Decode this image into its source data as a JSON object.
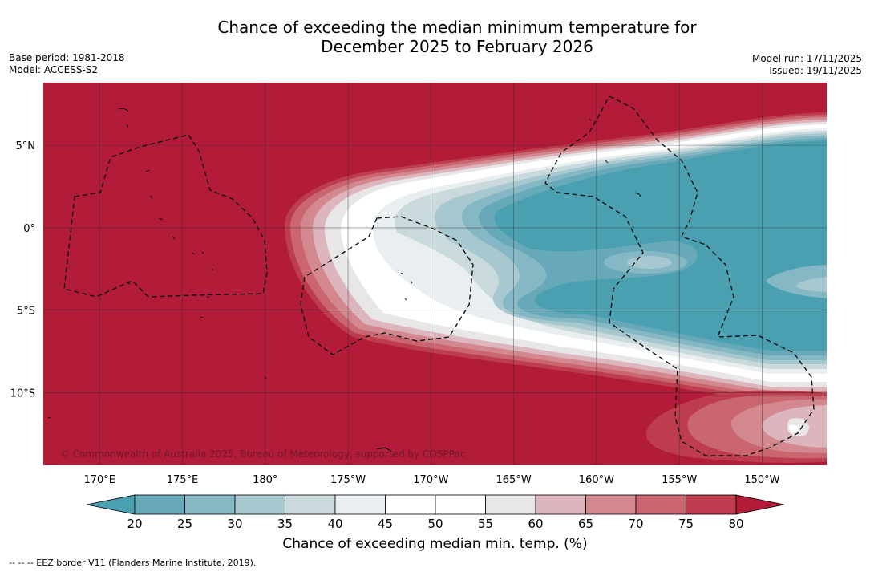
{
  "title_line1": "Chance of exceeding the median minimum temperature for",
  "title_line2": "December 2025 to February 2026",
  "base_period": "Base period: 1981-2018",
  "model": "Model: ACCESS-S2",
  "model_run": "Model run: 17/11/2025",
  "issued": "Issued: 19/11/2025",
  "copyright": "© Commonwealth of Australia 2025, Bureau of Meteorology, supported by COSPPac",
  "map": {
    "lon_ticks": [
      {
        "lon": 170,
        "label": "170°E"
      },
      {
        "lon": 175,
        "label": "175°E"
      },
      {
        "lon": 180,
        "label": "180°"
      },
      {
        "lon": 185,
        "label": "175°W"
      },
      {
        "lon": 190,
        "label": "170°W"
      },
      {
        "lon": 195,
        "label": "165°W"
      },
      {
        "lon": 200,
        "label": "160°W"
      },
      {
        "lon": 205,
        "label": "155°W"
      },
      {
        "lon": 210,
        "label": "150°W"
      }
    ],
    "lat_ticks": [
      {
        "lat": 5,
        "label": "5°N"
      },
      {
        "lat": 0,
        "label": "0°"
      },
      {
        "lat": -5,
        "label": "5°S"
      },
      {
        "lat": -10,
        "label": "10°S"
      }
    ],
    "lon_range": [
      166.6,
      213.9
    ],
    "lat_range": [
      -14.4,
      8.8
    ]
  },
  "colorbar": {
    "title": "Chance of exceeding median min. temp. (%)",
    "levels": [
      "20",
      "25",
      "30",
      "35",
      "40",
      "45",
      "50",
      "55",
      "60",
      "65",
      "70",
      "75",
      "80"
    ],
    "below_color": "#4aa0b0",
    "above_color": "#b31c39",
    "colors": [
      "#67a9b8",
      "#86b7c4",
      "#a7c8cf",
      "#c9d9dc",
      "#e9eff1",
      "#ffffff",
      "#ffffff",
      "#e9e6e8",
      "#ddb5bc",
      "#d3888f",
      "#c96670",
      "#bd3c4e"
    ]
  },
  "footnote": "--  --  -- EEZ border V11 (Flanders Marine Institute, 2019)."
}
